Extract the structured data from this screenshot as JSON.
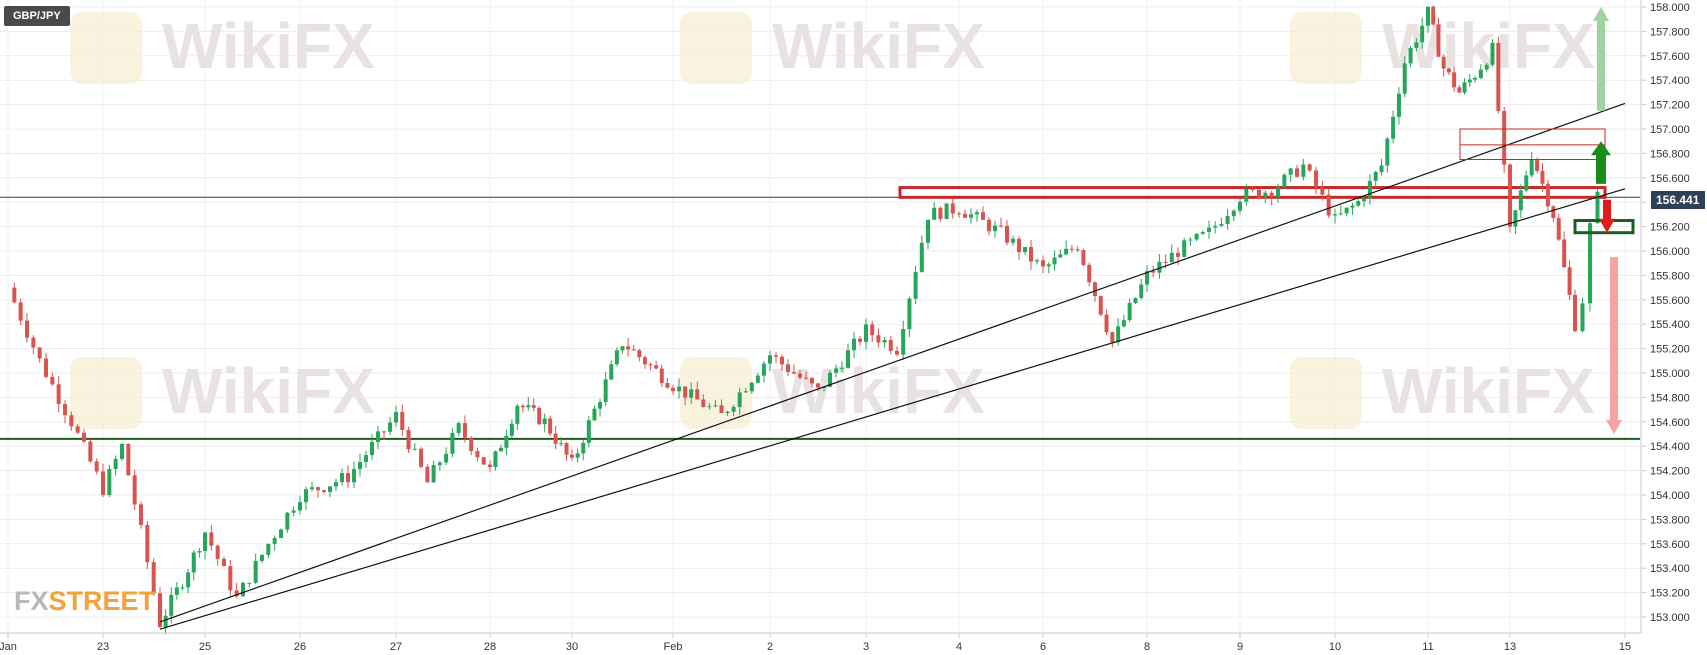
{
  "symbol": "GBP/JPY",
  "logo": {
    "part1": "FX",
    "part2": "STREET"
  },
  "watermark": "WikiFX",
  "current_price": "156.441",
  "colors": {
    "up_candle": "#26a65b",
    "down_candle": "#d9534f",
    "resistance_zone": "#c62828",
    "support_line": "#1b5e20",
    "price_line": "#2f3f57",
    "arrow_up": "#1a8c1a",
    "arrow_up_faded": "#9fd39f",
    "arrow_down": "#e01b1b",
    "arrow_down_faded": "#f5a3a3"
  },
  "chart_data": {
    "type": "candlestick",
    "instrument": "GBP/JPY",
    "y_axis": {
      "min": 153.0,
      "max": 158.0,
      "ticks": [
        "158.000",
        "157.800",
        "157.600",
        "157.400",
        "157.200",
        "157.000",
        "156.800",
        "156.600",
        "156.400",
        "156.200",
        "156.000",
        "155.800",
        "155.600",
        "155.400",
        "155.200",
        "155.000",
        "154.800",
        "154.600",
        "154.400",
        "154.200",
        "154.000",
        "153.800",
        "153.600",
        "153.400",
        "153.200",
        "153.000"
      ]
    },
    "x_axis": {
      "ticks": [
        "Jan",
        "23",
        "25",
        "26",
        "27",
        "28",
        "30",
        "Feb",
        "2",
        "3",
        "4",
        "6",
        "8",
        "9",
        "10",
        "11",
        "13",
        "15"
      ]
    },
    "current_price": 156.441,
    "levels": {
      "resistance_zone": [
        156.44,
        156.52
      ],
      "horizontal_support": 154.46,
      "price_line": 156.441
    },
    "trendlines": [
      {
        "from": {
          "x_label": "24",
          "price": 152.96
        },
        "to": {
          "x_label": "15",
          "price": 157.21
        }
      },
      {
        "from": {
          "x_label": "24",
          "price": 152.9
        },
        "to": {
          "x_label": "15",
          "price": 156.51
        }
      }
    ],
    "path": [
      [
        "Jan",
        155.7
      ],
      [
        "Jan",
        155.1
      ],
      [
        "Jan",
        154.6
      ],
      [
        "23",
        154.05
      ],
      [
        "23",
        154.4
      ],
      [
        "23",
        153.7
      ],
      [
        "24",
        152.95
      ],
      [
        "24",
        153.3
      ],
      [
        "25",
        153.7
      ],
      [
        "25",
        153.15
      ],
      [
        "25",
        153.6
      ],
      [
        "26",
        154.0
      ],
      [
        "26",
        154.15
      ],
      [
        "27",
        154.65
      ],
      [
        "27",
        154.1
      ],
      [
        "27",
        154.55
      ],
      [
        "28",
        154.2
      ],
      [
        "28",
        154.75
      ],
      [
        "28",
        154.6
      ],
      [
        "30",
        154.25
      ],
      [
        "30",
        155.25
      ],
      [
        "Feb",
        154.9
      ],
      [
        "Feb",
        154.65
      ],
      [
        "2",
        155.15
      ],
      [
        "2",
        154.85
      ],
      [
        "3",
        155.35
      ],
      [
        "3",
        155.2
      ],
      [
        "3",
        156.3
      ],
      [
        "4",
        156.35
      ],
      [
        "4",
        156.15
      ],
      [
        "6",
        155.85
      ],
      [
        "6",
        156.05
      ],
      [
        "6",
        155.25
      ],
      [
        "8",
        155.8
      ],
      [
        "8",
        156.0
      ],
      [
        "8",
        156.15
      ],
      [
        "9",
        156.45
      ],
      [
        "9",
        156.5
      ],
      [
        "9",
        156.7
      ],
      [
        "10",
        156.25
      ],
      [
        "10",
        156.4
      ],
      [
        "10",
        156.7
      ],
      [
        "10",
        157.55
      ],
      [
        "11",
        157.95
      ],
      [
        "11",
        157.5
      ],
      [
        "11",
        157.3
      ],
      [
        "12",
        157.45
      ],
      [
        "12",
        157.65
      ],
      [
        "13",
        156.15
      ],
      [
        "13",
        156.8
      ],
      [
        "13",
        156.3
      ],
      [
        "14",
        155.4
      ],
      [
        "14",
        155.6
      ],
      [
        "14",
        156.2
      ],
      [
        "14",
        156.44
      ]
    ],
    "annotations": [
      {
        "type": "box",
        "color": "red",
        "price_range": [
          156.75,
          157.0
        ],
        "description": "upper resistance box"
      },
      {
        "type": "box",
        "color": "green",
        "price_range": [
          156.15,
          156.25
        ],
        "description": "support box"
      },
      {
        "type": "arrow",
        "direction": "up",
        "style": "faded green",
        "price_from": 157.15,
        "price_to": 158.0
      },
      {
        "type": "arrow",
        "direction": "up",
        "style": "solid green",
        "price_from": 156.55,
        "price_to": 156.9
      },
      {
        "type": "arrow",
        "direction": "down",
        "style": "solid red",
        "price_from": 156.42,
        "price_to": 156.15
      },
      {
        "type": "arrow",
        "direction": "down",
        "style": "faded red",
        "price_from": 155.95,
        "price_to": 154.5
      }
    ]
  }
}
